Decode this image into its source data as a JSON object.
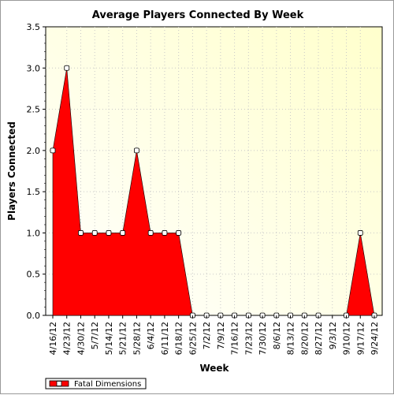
{
  "chart_data": {
    "type": "area",
    "title": "Average Players Connected By Week",
    "xlabel": "Week",
    "ylabel": "Players Connected",
    "ylim": [
      0,
      3.5
    ],
    "yticks": [
      "0.0",
      "0.5",
      "1.0",
      "1.5",
      "2.0",
      "2.5",
      "3.0",
      "3.5"
    ],
    "grid": true,
    "legend_position": "bottom-left",
    "categories": [
      "4/16/12",
      "4/23/12",
      "4/30/12",
      "5/7/12",
      "5/14/12",
      "5/21/12",
      "5/28/12",
      "6/4/12",
      "6/11/12",
      "6/18/12",
      "6/25/12",
      "7/2/12",
      "7/9/12",
      "7/16/12",
      "7/23/12",
      "7/30/12",
      "8/6/12",
      "8/13/12",
      "8/20/12",
      "8/27/12",
      "9/3/12",
      "9/10/12",
      "9/17/12",
      "9/24/12"
    ],
    "series": [
      {
        "name": "Fatal Dimensions",
        "color": "#ff0000",
        "values": [
          2,
          3,
          1,
          1,
          1,
          1,
          2,
          1,
          1,
          1,
          0,
          0,
          0,
          0,
          0,
          0,
          0,
          0,
          0,
          0,
          null,
          0,
          1,
          0
        ]
      }
    ]
  }
}
